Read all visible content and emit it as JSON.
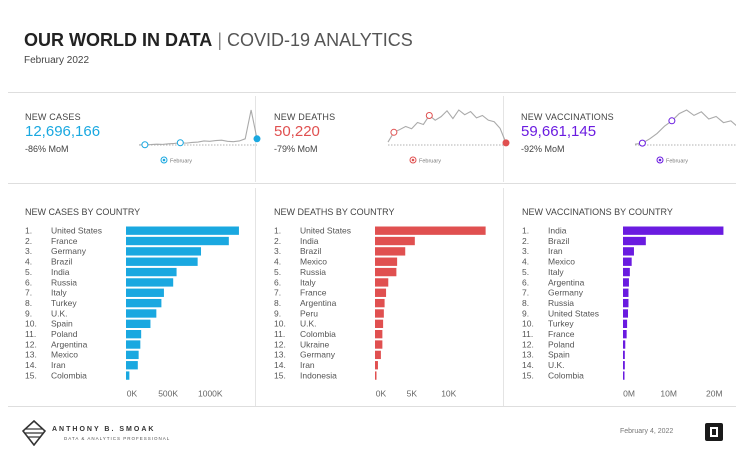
{
  "header": {
    "title_bold": "OUR WORLD IN DATA",
    "title_sep": "|",
    "title_rest": "COVID-19 ANALYTICS",
    "subtitle": "February 2022"
  },
  "kpis": [
    {
      "label": "NEW CASES",
      "value": "12,696,166",
      "mom": "-86% MoM",
      "color": "#1aa8e0",
      "legend": "February",
      "trend": [
        3,
        3.5,
        4,
        5,
        4.5,
        6,
        7,
        9,
        8,
        10,
        11,
        14,
        13,
        15,
        16,
        13,
        12,
        14,
        20,
        100,
        20
      ]
    },
    {
      "label": "NEW DEATHS",
      "value": "50,220",
      "mom": "-79% MoM",
      "color": "#e05050",
      "legend": "February",
      "trend": [
        10,
        35,
        42,
        50,
        44,
        60,
        55,
        78,
        66,
        75,
        90,
        70,
        92,
        80,
        88,
        72,
        78,
        66,
        62,
        45,
        8
      ]
    },
    {
      "label": "NEW VACCINATIONS",
      "value": "59,661,145",
      "mom": "-92% MoM",
      "color": "#6a1be0",
      "legend": "February",
      "trend": [
        5,
        8,
        20,
        35,
        55,
        70,
        90,
        100,
        85,
        95,
        75,
        82,
        65,
        70,
        52,
        30,
        5
      ]
    }
  ],
  "chart_data": [
    {
      "type": "bar",
      "title": "NEW CASES BY COUNTRY",
      "color": "#1aa8e0",
      "categories": [
        "United States",
        "France",
        "Germany",
        "Brazil",
        "India",
        "Russia",
        "Italy",
        "Turkey",
        "U.K.",
        "Spain",
        "Poland",
        "Argentina",
        "Mexico",
        "Iran",
        "Colombia"
      ],
      "values": [
        1340000,
        1220000,
        890000,
        850000,
        600000,
        560000,
        450000,
        420000,
        360000,
        290000,
        180000,
        170000,
        150000,
        140000,
        40000
      ],
      "ticks": [
        0,
        500000,
        1000000
      ],
      "tick_labels": [
        "0K",
        "500K",
        "1000K"
      ],
      "xlim": [
        0,
        1400000
      ]
    },
    {
      "type": "bar",
      "title": "NEW DEATHS BY COUNTRY",
      "color": "#e05050",
      "categories": [
        "United States",
        "India",
        "Brazil",
        "Mexico",
        "Russia",
        "Italy",
        "France",
        "Argentina",
        "Peru",
        "U.K.",
        "Colombia",
        "Ukraine",
        "Germany",
        "Iran",
        "Indonesia"
      ],
      "values": [
        15000,
        5400,
        4100,
        3000,
        2900,
        1800,
        1500,
        1300,
        1200,
        1100,
        1000,
        1000,
        800,
        400,
        200
      ],
      "ticks": [
        0,
        5000,
        10000
      ],
      "tick_labels": [
        "0K",
        "5K",
        "10K"
      ],
      "xlim": [
        0,
        16000
      ]
    },
    {
      "type": "bar",
      "title": "NEW VACCINATIONS BY COUNTRY",
      "color": "#6a1be0",
      "categories": [
        "India",
        "Brazil",
        "Iran",
        "Mexico",
        "Italy",
        "Argentina",
        "Germany",
        "Russia",
        "United States",
        "Turkey",
        "France",
        "Poland",
        "Spain",
        "U.K.",
        "Colombia"
      ],
      "values": [
        22000000,
        5000000,
        2400000,
        1900000,
        1500000,
        1300000,
        1200000,
        1200000,
        1100000,
        900000,
        800000,
        500000,
        400000,
        400000,
        300000
      ],
      "ticks": [
        0,
        10000000,
        20000000
      ],
      "tick_labels": [
        "0M",
        "10M",
        "20M"
      ],
      "xlim": [
        0,
        23000000
      ]
    }
  ],
  "footer": {
    "name": "ANTHONY B. SMOAK",
    "tagline": "DATA & ANALYTICS PROFESSIONAL",
    "date": "February 4, 2022"
  }
}
